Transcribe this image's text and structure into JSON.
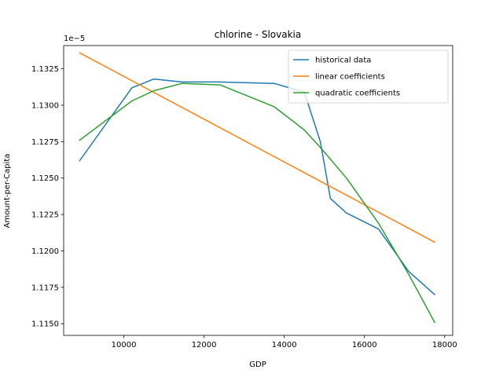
{
  "chart_data": {
    "type": "line",
    "title": "chlorine - Slovakia",
    "xlabel": "GDP",
    "ylabel": "Amount-per-Capita",
    "y_offset_label": "1e−5",
    "xlim": [
      8500,
      18200
    ],
    "ylim": [
      1.1142,
      1.1341
    ],
    "x_ticks": [
      10000,
      12000,
      14000,
      16000,
      18000
    ],
    "y_ticks": [
      1.115,
      1.1175,
      1.12,
      1.1225,
      1.125,
      1.1275,
      1.13,
      1.1325
    ],
    "x_tick_labels": [
      "10000",
      "12000",
      "14000",
      "16000",
      "18000"
    ],
    "y_tick_labels": [
      "1.1150",
      "1.1175",
      "1.1200",
      "1.1225",
      "1.1250",
      "1.1275",
      "1.1300",
      "1.1325"
    ],
    "grid": false,
    "legend_position": "top-right",
    "series": [
      {
        "name": "historical data",
        "color": "#1f77b4",
        "x": [
          8900,
          10200,
          10750,
          11450,
          12400,
          13750,
          14500,
          14900,
          15150,
          15550,
          16350,
          17100,
          17750
        ],
        "y": [
          1.1262,
          1.1312,
          1.1318,
          1.1316,
          1.1316,
          1.1315,
          1.1309,
          1.1275,
          1.1236,
          1.1226,
          1.1215,
          1.1186,
          1.117
        ]
      },
      {
        "name": "linear coefficients",
        "color": "#ff7f0e",
        "x": [
          8900,
          17750
        ],
        "y": [
          1.1336,
          1.1206
        ]
      },
      {
        "name": "quadratic coefficients",
        "color": "#2ca02c",
        "x": [
          8900,
          10200,
          10750,
          11450,
          12400,
          13750,
          14500,
          14900,
          15150,
          15550,
          16350,
          17100,
          17750
        ],
        "y": [
          1.1276,
          1.1303,
          1.131,
          1.1315,
          1.1314,
          1.1299,
          1.1283,
          1.1271,
          1.1263,
          1.125,
          1.1219,
          1.1184,
          1.1151
        ]
      }
    ]
  }
}
